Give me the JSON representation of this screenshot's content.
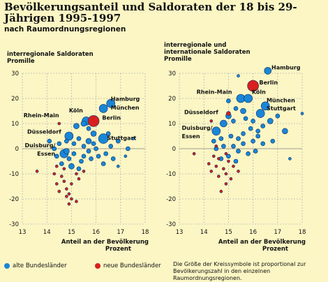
{
  "title": "Bevölkerungsanteil und Saldoraten der 18 bis 29-Jährigen 1995-1997",
  "subtitle": "nach Raumordnungsregionen",
  "note": "Die Größe der Kreissymbole ist proportional zur Bevölkerungszahl in den einzelnen Raumordnungsregionen.",
  "colors": {
    "background": "#fbf6c4",
    "west": "#1a86d6",
    "east": "#d8201e",
    "grid": "#b7b7b7"
  },
  "legend": {
    "west": "alte Bundesländer",
    "east": "neue Bundesländer"
  },
  "chart_data": [
    {
      "type": "scatter",
      "title": "interregionale Saldoraten",
      "unit_label": "Promille",
      "xlabel": "Anteil an der Bevölkerung",
      "xunit": "Prozent",
      "xlim": [
        13,
        18
      ],
      "ylim": [
        -30,
        30
      ],
      "xticks": [
        13,
        14,
        15,
        16,
        17,
        18
      ],
      "yticks": [
        30,
        20,
        10,
        0,
        -10,
        -20,
        -30
      ],
      "grid": true,
      "labels": [
        {
          "text": "Hamburg",
          "x": 16.6,
          "y": 19
        },
        {
          "text": "München",
          "x": 16.6,
          "y": 15.5
        },
        {
          "text": "Köln",
          "x": 14.9,
          "y": 14.5
        },
        {
          "text": "Berlin",
          "x": 16.25,
          "y": 11.5
        },
        {
          "text": "Rhein-Main",
          "x": 13.05,
          "y": 12.5
        },
        {
          "text": "Düsseldorf",
          "x": 13.2,
          "y": 6
        },
        {
          "text": "Stuttgart",
          "x": 16.45,
          "y": 3.5
        },
        {
          "text": "Duisburg/",
          "x": 13.1,
          "y": 0.5
        },
        {
          "text": "Essen",
          "x": 13.6,
          "y": -2.8
        }
      ],
      "series": [
        {
          "key": "west",
          "points": [
            {
              "x": 16.6,
              "y": 18,
              "r": 6
            },
            {
              "x": 16.3,
              "y": 16,
              "r": 6
            },
            {
              "x": 15.6,
              "y": 11,
              "r": 6
            },
            {
              "x": 14.9,
              "y": 5,
              "r": 6
            },
            {
              "x": 16.3,
              "y": 4,
              "r": 7
            },
            {
              "x": 14.7,
              "y": -2,
              "r": 6
            },
            {
              "x": 15.2,
              "y": 9,
              "r": 4
            },
            {
              "x": 15.5,
              "y": 10,
              "r": 4
            },
            {
              "x": 15.7,
              "y": 8,
              "r": 3
            },
            {
              "x": 15.9,
              "y": 6,
              "r": 4
            },
            {
              "x": 15.3,
              "y": 4,
              "r": 3
            },
            {
              "x": 15.7,
              "y": 3,
              "r": 4
            },
            {
              "x": 15.9,
              "y": 2,
              "r": 3
            },
            {
              "x": 16.0,
              "y": 0,
              "r": 3
            },
            {
              "x": 15.5,
              "y": 1,
              "r": 3
            },
            {
              "x": 15.1,
              "y": 2,
              "r": 3
            },
            {
              "x": 14.5,
              "y": 2,
              "r": 3
            },
            {
              "x": 14.3,
              "y": 0,
              "r": 3
            },
            {
              "x": 14.8,
              "y": -1,
              "r": 4
            },
            {
              "x": 15.1,
              "y": -2,
              "r": 3
            },
            {
              "x": 15.5,
              "y": -3,
              "r": 3
            },
            {
              "x": 15.8,
              "y": -4,
              "r": 3
            },
            {
              "x": 16.1,
              "y": -3,
              "r": 3
            },
            {
              "x": 16.4,
              "y": -2,
              "r": 3
            },
            {
              "x": 16.7,
              "y": -4,
              "r": 3
            },
            {
              "x": 16.9,
              "y": -7,
              "r": 2
            },
            {
              "x": 17.3,
              "y": 0,
              "r": 3
            },
            {
              "x": 17.5,
              "y": 4,
              "r": 2
            },
            {
              "x": 16.6,
              "y": 1,
              "r": 3
            },
            {
              "x": 15.4,
              "y": -5,
              "r": 3
            },
            {
              "x": 14.9,
              "y": -4,
              "r": 3
            },
            {
              "x": 14.6,
              "y": -6,
              "r": 3
            },
            {
              "x": 15.0,
              "y": -7,
              "r": 4
            },
            {
              "x": 15.3,
              "y": -8,
              "r": 3
            },
            {
              "x": 14.4,
              "y": -3,
              "r": 3
            },
            {
              "x": 14.1,
              "y": 3,
              "r": 3
            },
            {
              "x": 14.8,
              "y": 3,
              "r": 3
            },
            {
              "x": 16.3,
              "y": -6,
              "r": 3
            },
            {
              "x": 15.7,
              "y": -1,
              "r": 3
            },
            {
              "x": 16.9,
              "y": 3,
              "r": 3
            },
            {
              "x": 17.2,
              "y": -3,
              "r": 2
            },
            {
              "x": 16.5,
              "y": 6,
              "r": 3
            }
          ]
        },
        {
          "key": "east",
          "points": [
            {
              "x": 15.9,
              "y": 11,
              "r": 8
            },
            {
              "x": 14.5,
              "y": 10,
              "r": 2
            },
            {
              "x": 13.6,
              "y": -9,
              "r": 2
            },
            {
              "x": 14.3,
              "y": -10,
              "r": 2
            },
            {
              "x": 14.6,
              "y": -11,
              "r": 2
            },
            {
              "x": 14.7,
              "y": -13,
              "r": 2
            },
            {
              "x": 14.4,
              "y": -14,
              "r": 2
            },
            {
              "x": 14.8,
              "y": -16,
              "r": 2
            },
            {
              "x": 14.9,
              "y": -18,
              "r": 2
            },
            {
              "x": 15.0,
              "y": -20,
              "r": 2
            },
            {
              "x": 14.9,
              "y": -22,
              "r": 2
            },
            {
              "x": 15.2,
              "y": -21,
              "r": 2
            },
            {
              "x": 14.5,
              "y": -17,
              "r": 2
            },
            {
              "x": 15.0,
              "y": -14,
              "r": 2
            },
            {
              "x": 15.3,
              "y": -12,
              "r": 2
            },
            {
              "x": 14.7,
              "y": -8,
              "r": 2
            },
            {
              "x": 15.2,
              "y": -10,
              "r": 2
            },
            {
              "x": 15.5,
              "y": -9,
              "r": 2
            },
            {
              "x": 14.4,
              "y": -7,
              "r": 2
            },
            {
              "x": 14.8,
              "y": -19,
              "r": 2
            }
          ]
        }
      ]
    },
    {
      "type": "scatter",
      "title": "interregionale und internationale Saldoraten",
      "unit_label": "Promille",
      "xlabel": "Anteil an der Bevölkerung",
      "xunit": "Prozent",
      "xlim": [
        13,
        18
      ],
      "ylim": [
        -30,
        30
      ],
      "xticks": [
        13,
        14,
        15,
        16,
        17,
        18
      ],
      "yticks": [
        30,
        20,
        10,
        0,
        -10,
        -20,
        -30
      ],
      "grid": true,
      "labels": [
        {
          "text": "Hamburg",
          "x": 16.75,
          "y": 31.5
        },
        {
          "text": "Berlin",
          "x": 16.25,
          "y": 25.5
        },
        {
          "text": "Rhein-Main",
          "x": 13.7,
          "y": 21.8
        },
        {
          "text": "Köln",
          "x": 15.95,
          "y": 21.8
        },
        {
          "text": "München",
          "x": 16.55,
          "y": 18.5
        },
        {
          "text": "Stuttgart",
          "x": 16.55,
          "y": 15.3
        },
        {
          "text": "Düsseldorf",
          "x": 13.2,
          "y": 13.7
        },
        {
          "text": "Duisburg/",
          "x": 13.1,
          "y": 7.5
        },
        {
          "text": "Essen",
          "x": 13.1,
          "y": 4.2
        }
      ],
      "series": [
        {
          "key": "west",
          "points": [
            {
              "x": 16.6,
              "y": 31,
              "r": 5
            },
            {
              "x": 15.5,
              "y": 20,
              "r": 6
            },
            {
              "x": 15.8,
              "y": 20,
              "r": 6
            },
            {
              "x": 16.5,
              "y": 17,
              "r": 6
            },
            {
              "x": 16.3,
              "y": 14,
              "r": 6
            },
            {
              "x": 14.8,
              "y": 10,
              "r": 5
            },
            {
              "x": 14.5,
              "y": 7,
              "r": 6
            },
            {
              "x": 15.4,
              "y": 29,
              "r": 2
            },
            {
              "x": 15.0,
              "y": 19,
              "r": 3
            },
            {
              "x": 15.3,
              "y": 16,
              "r": 3
            },
            {
              "x": 15.6,
              "y": 15,
              "r": 4
            },
            {
              "x": 15.0,
              "y": 13,
              "r": 4
            },
            {
              "x": 15.2,
              "y": 11,
              "r": 3
            },
            {
              "x": 15.7,
              "y": 12,
              "r": 3
            },
            {
              "x": 16.0,
              "y": 11,
              "r": 3
            },
            {
              "x": 16.7,
              "y": 11,
              "r": 4
            },
            {
              "x": 17.0,
              "y": 13,
              "r": 3
            },
            {
              "x": 17.3,
              "y": 7,
              "r": 4
            },
            {
              "x": 18.0,
              "y": 14,
              "r": 2
            },
            {
              "x": 16.4,
              "y": 9,
              "r": 3
            },
            {
              "x": 16.2,
              "y": 7,
              "r": 3
            },
            {
              "x": 15.9,
              "y": 8,
              "r": 3
            },
            {
              "x": 15.6,
              "y": 6,
              "r": 3
            },
            {
              "x": 15.4,
              "y": 4,
              "r": 3
            },
            {
              "x": 15.1,
              "y": 5,
              "r": 3
            },
            {
              "x": 14.7,
              "y": 4,
              "r": 3
            },
            {
              "x": 14.4,
              "y": 3,
              "r": 3
            },
            {
              "x": 14.5,
              "y": 0,
              "r": 3
            },
            {
              "x": 14.8,
              "y": 1,
              "r": 3
            },
            {
              "x": 15.2,
              "y": 1,
              "r": 3
            },
            {
              "x": 15.6,
              "y": 2,
              "r": 3
            },
            {
              "x": 16.0,
              "y": 3,
              "r": 3
            },
            {
              "x": 16.4,
              "y": 2,
              "r": 3
            },
            {
              "x": 16.8,
              "y": 3,
              "r": 3
            },
            {
              "x": 16.1,
              "y": -1,
              "r": 3
            },
            {
              "x": 15.8,
              "y": -2,
              "r": 3
            },
            {
              "x": 15.4,
              "y": -1,
              "r": 3
            },
            {
              "x": 15.0,
              "y": -3,
              "r": 3
            },
            {
              "x": 14.7,
              "y": -4,
              "r": 3
            },
            {
              "x": 15.3,
              "y": -5,
              "r": 3
            },
            {
              "x": 16.2,
              "y": 5,
              "r": 3
            },
            {
              "x": 17.5,
              "y": -4,
              "r": 2
            }
          ]
        },
        {
          "key": "east",
          "points": [
            {
              "x": 16.0,
              "y": 25,
              "r": 8
            },
            {
              "x": 15.0,
              "y": 14,
              "r": 3
            },
            {
              "x": 14.3,
              "y": 11,
              "r": 2
            },
            {
              "x": 13.6,
              "y": -2,
              "r": 2
            },
            {
              "x": 14.4,
              "y": -3,
              "r": 2
            },
            {
              "x": 14.6,
              "y": -4,
              "r": 2
            },
            {
              "x": 14.2,
              "y": -6,
              "r": 2
            },
            {
              "x": 14.5,
              "y": -7,
              "r": 2
            },
            {
              "x": 14.8,
              "y": -8,
              "r": 2
            },
            {
              "x": 14.9,
              "y": -10,
              "r": 2
            },
            {
              "x": 14.6,
              "y": -11,
              "r": 2
            },
            {
              "x": 15.1,
              "y": -12,
              "r": 2
            },
            {
              "x": 14.9,
              "y": -14,
              "r": 2
            },
            {
              "x": 14.7,
              "y": -17,
              "r": 2
            },
            {
              "x": 15.2,
              "y": -7,
              "r": 2
            },
            {
              "x": 15.4,
              "y": -9,
              "r": 2
            },
            {
              "x": 14.3,
              "y": -9,
              "r": 2
            },
            {
              "x": 15.0,
              "y": -5,
              "r": 2
            },
            {
              "x": 14.9,
              "y": -2,
              "r": 2
            },
            {
              "x": 14.5,
              "y": 1,
              "r": 2
            }
          ]
        }
      ]
    }
  ]
}
